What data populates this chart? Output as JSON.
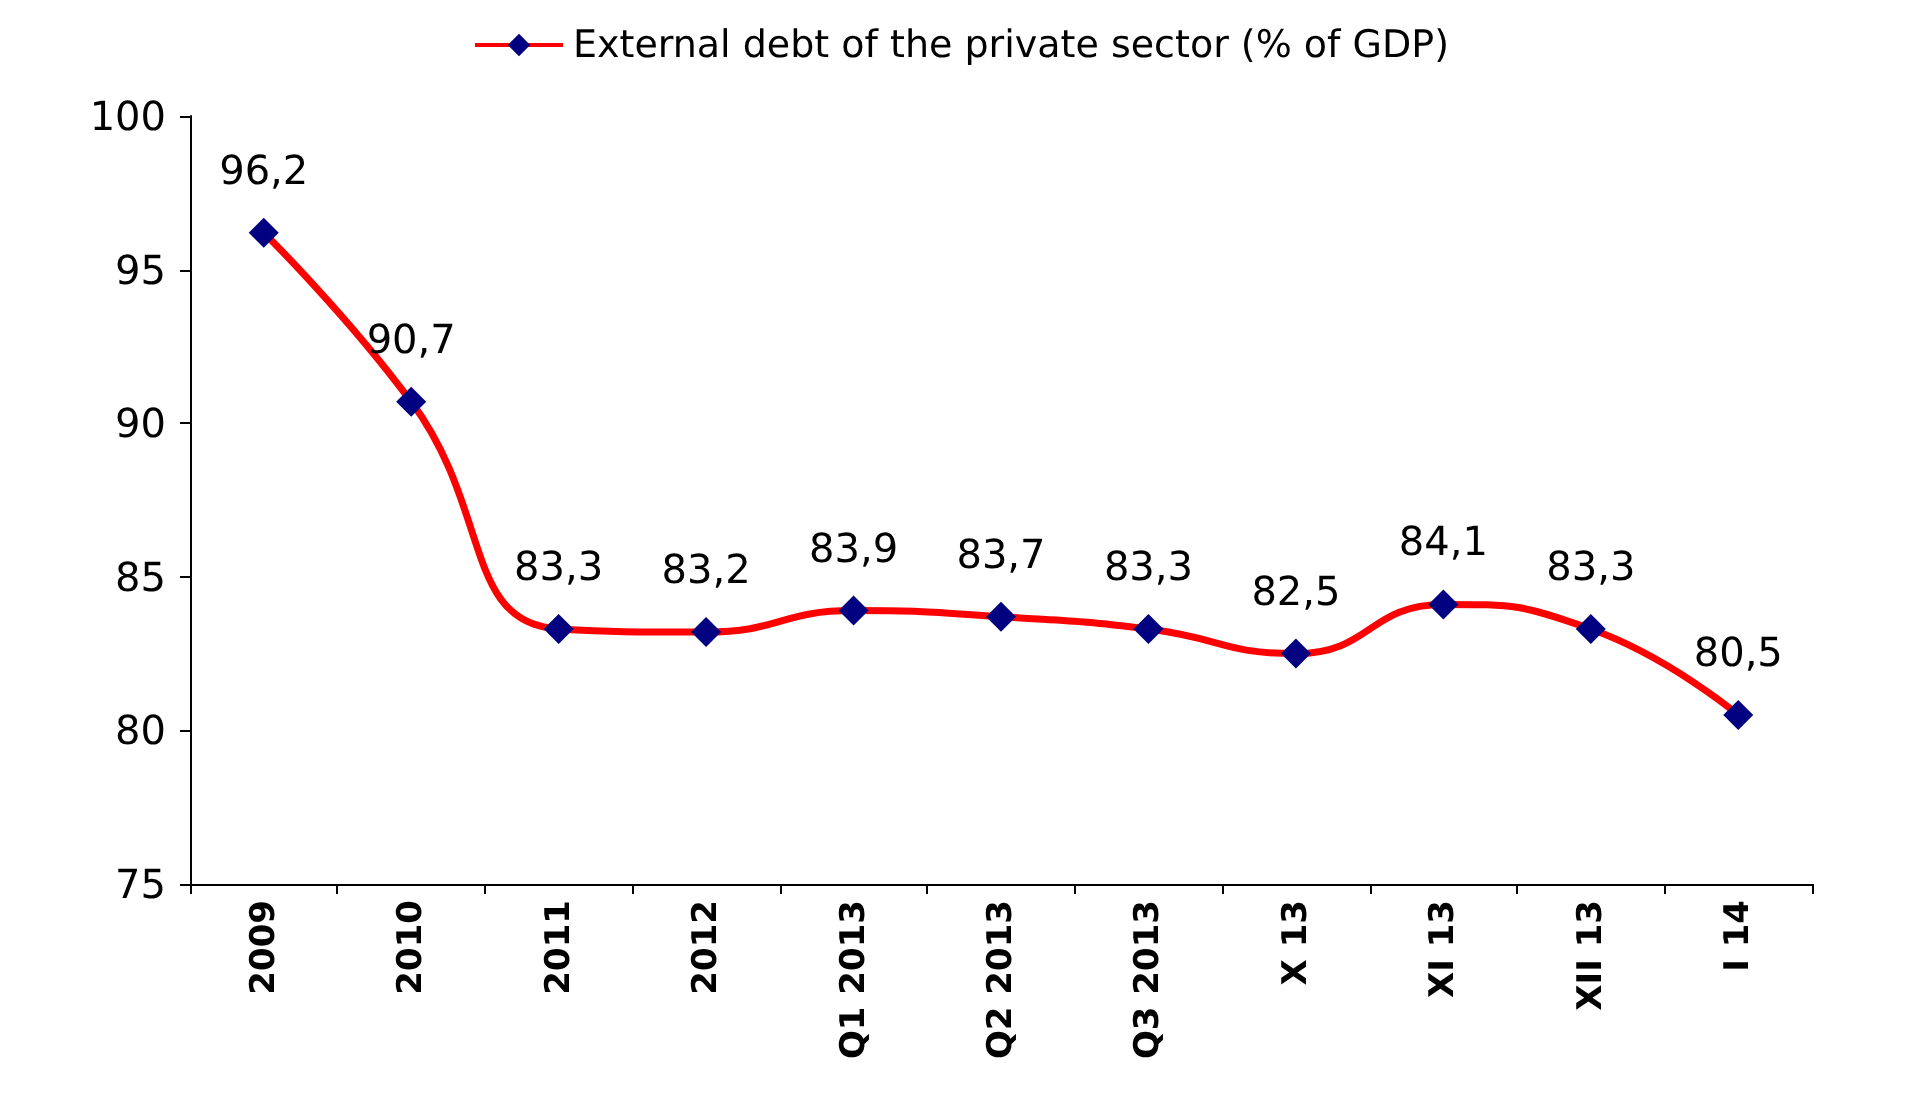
{
  "chart_data": {
    "type": "line",
    "categories": [
      "2009",
      "2010",
      "2011",
      "2012",
      "Q1 2013",
      "Q2 2013",
      "Q3 2013",
      "X 13",
      "XI 13",
      "XII 13",
      "I 14"
    ],
    "series": [
      {
        "name": "External debt of the private sector (% of GDP)",
        "color": "#ff0000",
        "values": [
          96.2,
          90.7,
          83.3,
          83.2,
          83.9,
          83.7,
          83.3,
          82.5,
          84.1,
          83.3,
          80.5
        ],
        "value_labels": [
          "96,2",
          "90,7",
          "83,3",
          "83,2",
          "83,9",
          "83,7",
          "83,3",
          "82,5",
          "84,1",
          "83,3",
          "80,5"
        ]
      }
    ],
    "ylim": [
      75,
      100
    ],
    "yticks": [
      75,
      80,
      85,
      90,
      95,
      100
    ],
    "grid": false,
    "legend": "top",
    "marker": "diamond",
    "line_style": "solid"
  }
}
